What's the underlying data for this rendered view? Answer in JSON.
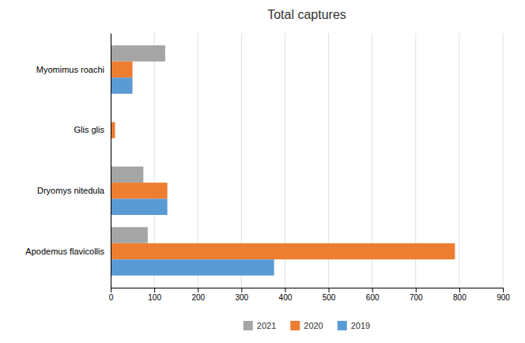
{
  "chart_data": {
    "type": "bar",
    "orientation": "horizontal",
    "title": "Total captures",
    "categories": [
      "Apodemus flavicollis",
      "Dryomys nitedula",
      "Glis glis",
      "Myomimus roachi"
    ],
    "series": [
      {
        "name": "2021",
        "color": "#A5A5A5",
        "values": [
          85,
          75,
          0,
          125
        ]
      },
      {
        "name": "2020",
        "color": "#ED7D31",
        "values": [
          790,
          130,
          10,
          50
        ]
      },
      {
        "name": "2019",
        "color": "#5B9BD5",
        "values": [
          375,
          130,
          0,
          50
        ]
      }
    ],
    "xlim": [
      0,
      900
    ],
    "xticks": [
      0,
      100,
      200,
      300,
      400,
      500,
      600,
      700,
      800,
      900
    ],
    "grid": true,
    "legend": "bottom"
  }
}
